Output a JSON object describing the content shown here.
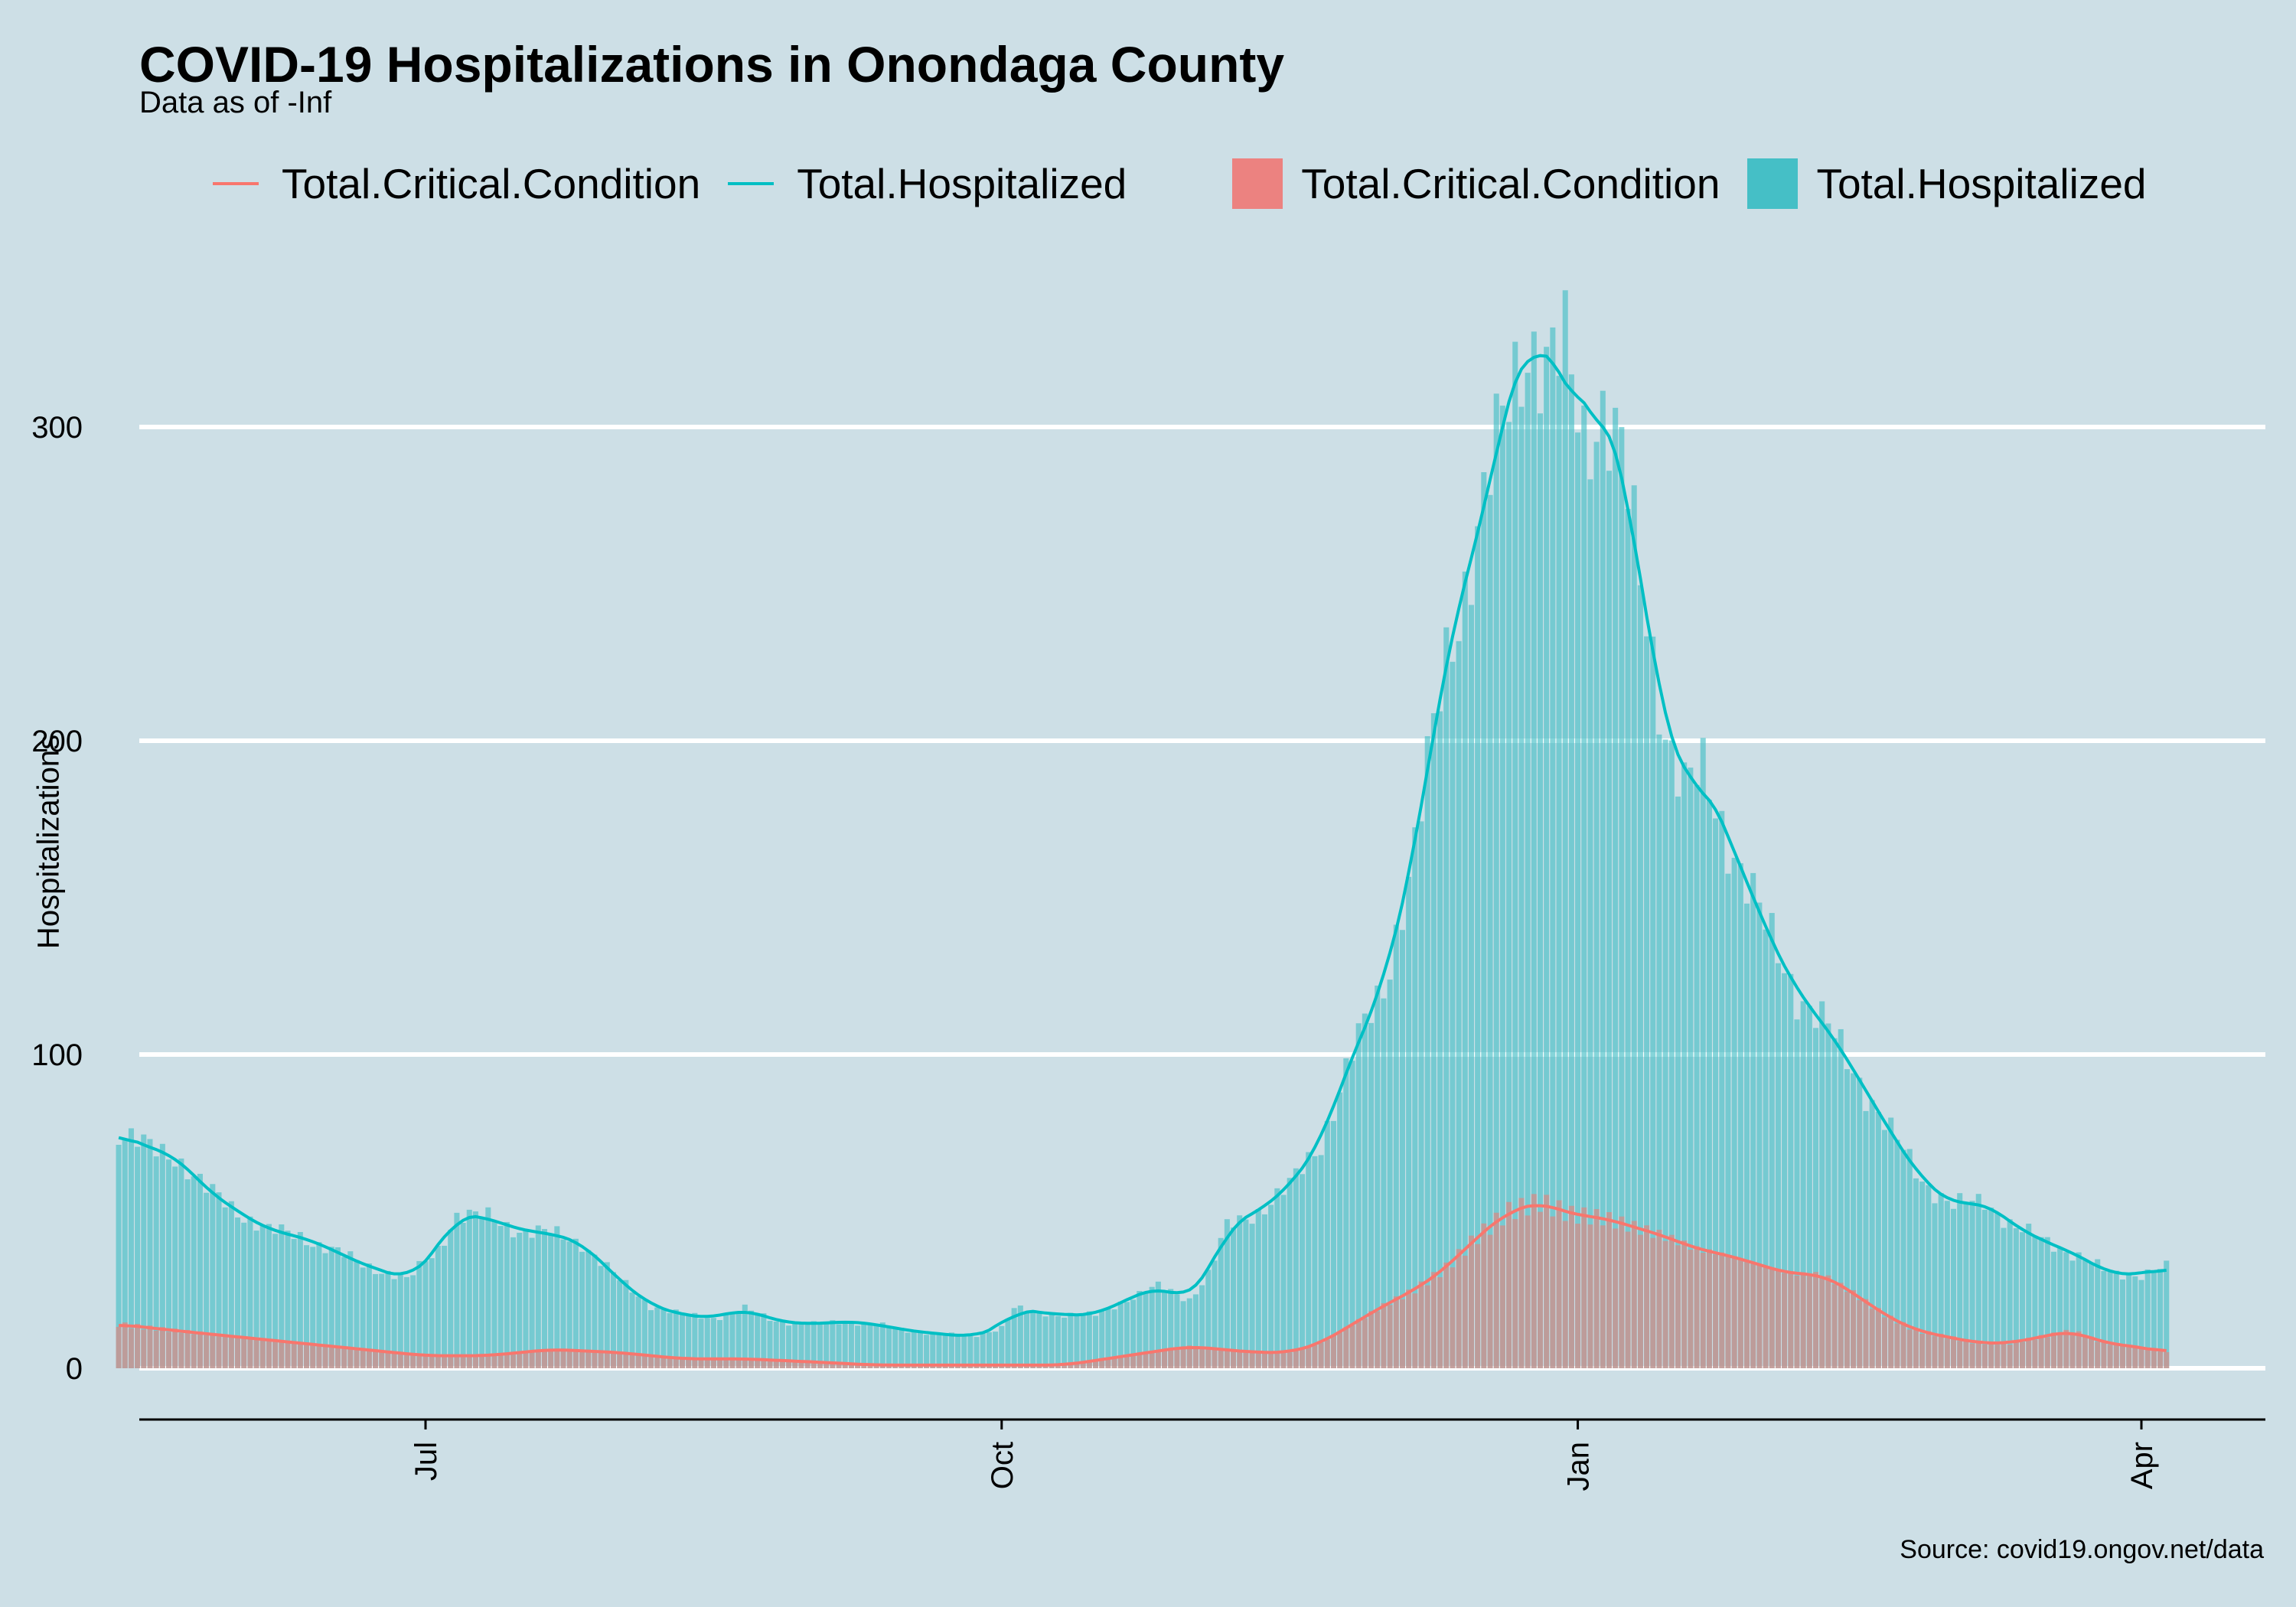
{
  "chart_data": {
    "type": "bar",
    "title": "COVID-19 Hospitalizations in Onondaga County",
    "subtitle": "Data as of -Inf",
    "ylabel": "Hospitalizations",
    "xlabel": "",
    "caption": "Source: covid19.ongov.net/data",
    "ylim": [
      -17,
      345
    ],
    "yticks": [
      0,
      100,
      200,
      300
    ],
    "grid": "horizontal",
    "legend_position": "top",
    "x_ticks": [
      {
        "label": "Jul",
        "date": "2020-07-01"
      },
      {
        "label": "Oct",
        "date": "2020-10-01"
      },
      {
        "label": "Jan",
        "date": "2021-01-01"
      },
      {
        "label": "Apr",
        "date": "2021-04-01"
      }
    ],
    "colors": {
      "critical": "#f8766d",
      "hospitalized": "#00bfc4",
      "background": "#cddfe6",
      "grid": "#ffffff"
    },
    "legend": {
      "lines": [
        "Total.Critical.Condition",
        "Total.Hospitalized"
      ],
      "bars": [
        "Total.Critical.Condition",
        "Total.Hospitalized"
      ]
    },
    "anchors": {
      "hospitalized": [
        [
          "2020-05-13",
          75
        ],
        [
          "2020-05-18",
          70
        ],
        [
          "2020-05-22",
          68
        ],
        [
          "2020-05-27",
          57
        ],
        [
          "2020-06-01",
          50
        ],
        [
          "2020-06-06",
          44
        ],
        [
          "2020-06-11",
          42
        ],
        [
          "2020-06-16",
          38
        ],
        [
          "2020-06-21",
          33
        ],
        [
          "2020-06-26",
          30
        ],
        [
          "2020-06-28",
          28
        ],
        [
          "2020-07-03",
          38
        ],
        [
          "2020-07-06",
          49
        ],
        [
          "2020-07-11",
          48
        ],
        [
          "2020-07-16",
          44
        ],
        [
          "2020-07-21",
          43
        ],
        [
          "2020-07-26",
          40
        ],
        [
          "2020-08-01",
          28
        ],
        [
          "2020-08-06",
          20
        ],
        [
          "2020-08-11",
          17
        ],
        [
          "2020-08-16",
          16
        ],
        [
          "2020-08-21",
          19
        ],
        [
          "2020-08-26",
          15
        ],
        [
          "2020-09-01",
          14
        ],
        [
          "2020-09-06",
          15
        ],
        [
          "2020-09-11",
          14
        ],
        [
          "2020-09-16",
          12
        ],
        [
          "2020-09-21",
          11
        ],
        [
          "2020-09-26",
          10
        ],
        [
          "2020-10-01",
          13
        ],
        [
          "2020-10-03",
          19
        ],
        [
          "2020-10-06",
          18
        ],
        [
          "2020-10-11",
          17
        ],
        [
          "2020-10-16",
          17
        ],
        [
          "2020-10-21",
          22
        ],
        [
          "2020-10-26",
          26
        ],
        [
          "2020-10-31",
          22
        ],
        [
          "2020-11-03",
          30
        ],
        [
          "2020-11-06",
          45
        ],
        [
          "2020-11-11",
          50
        ],
        [
          "2020-11-16",
          58
        ],
        [
          "2020-11-21",
          72
        ],
        [
          "2020-11-26",
          100
        ],
        [
          "2020-12-01",
          122
        ],
        [
          "2020-12-06",
          165
        ],
        [
          "2020-12-11",
          228
        ],
        [
          "2020-12-16",
          265
        ],
        [
          "2020-12-21",
          310
        ],
        [
          "2020-12-24",
          330
        ],
        [
          "2020-12-27",
          318
        ],
        [
          "2020-12-30",
          322
        ],
        [
          "2021-01-02",
          298
        ],
        [
          "2021-01-05",
          308
        ],
        [
          "2021-01-08",
          290
        ],
        [
          "2021-01-11",
          250
        ],
        [
          "2021-01-15",
          205
        ],
        [
          "2021-01-18",
          185
        ],
        [
          "2021-01-21",
          188
        ],
        [
          "2021-01-26",
          165
        ],
        [
          "2021-01-31",
          140
        ],
        [
          "2021-02-05",
          120
        ],
        [
          "2021-02-10",
          108
        ],
        [
          "2021-02-15",
          92
        ],
        [
          "2021-02-20",
          75
        ],
        [
          "2021-02-25",
          60
        ],
        [
          "2021-03-02",
          52
        ],
        [
          "2021-03-07",
          53
        ],
        [
          "2021-03-12",
          45
        ],
        [
          "2021-03-17",
          40
        ],
        [
          "2021-03-22",
          36
        ],
        [
          "2021-03-27",
          30
        ],
        [
          "2021-04-01",
          30
        ],
        [
          "2021-04-05",
          32
        ]
      ],
      "critical": [
        [
          "2020-05-13",
          14
        ],
        [
          "2020-05-22",
          12
        ],
        [
          "2020-06-01",
          10
        ],
        [
          "2020-06-11",
          8
        ],
        [
          "2020-06-21",
          6
        ],
        [
          "2020-07-01",
          4
        ],
        [
          "2020-07-11",
          4
        ],
        [
          "2020-07-21",
          6
        ],
        [
          "2020-08-01",
          5
        ],
        [
          "2020-08-11",
          3
        ],
        [
          "2020-08-21",
          3
        ],
        [
          "2020-09-01",
          2
        ],
        [
          "2020-09-11",
          1
        ],
        [
          "2020-09-21",
          1
        ],
        [
          "2020-10-01",
          1
        ],
        [
          "2020-10-11",
          1
        ],
        [
          "2020-10-21",
          4
        ],
        [
          "2020-10-31",
          7
        ],
        [
          "2020-11-05",
          6
        ],
        [
          "2020-11-11",
          5
        ],
        [
          "2020-11-16",
          5
        ],
        [
          "2020-11-21",
          8
        ],
        [
          "2020-11-26",
          14
        ],
        [
          "2020-12-01",
          20
        ],
        [
          "2020-12-06",
          25
        ],
        [
          "2020-12-11",
          32
        ],
        [
          "2020-12-16",
          42
        ],
        [
          "2020-12-21",
          50
        ],
        [
          "2020-12-26",
          53
        ],
        [
          "2020-12-31",
          49
        ],
        [
          "2021-01-05",
          48
        ],
        [
          "2021-01-10",
          45
        ],
        [
          "2021-01-15",
          42
        ],
        [
          "2021-01-20",
          38
        ],
        [
          "2021-01-25",
          36
        ],
        [
          "2021-01-30",
          33
        ],
        [
          "2021-02-04",
          30
        ],
        [
          "2021-02-09",
          30
        ],
        [
          "2021-02-14",
          24
        ],
        [
          "2021-02-19",
          17
        ],
        [
          "2021-02-24",
          12
        ],
        [
          "2021-03-01",
          10
        ],
        [
          "2021-03-06",
          8
        ],
        [
          "2021-03-11",
          8
        ],
        [
          "2021-03-16",
          10
        ],
        [
          "2021-03-21",
          12
        ],
        [
          "2021-03-26",
          8
        ],
        [
          "2021-03-31",
          7
        ],
        [
          "2021-04-05",
          5
        ]
      ]
    }
  }
}
